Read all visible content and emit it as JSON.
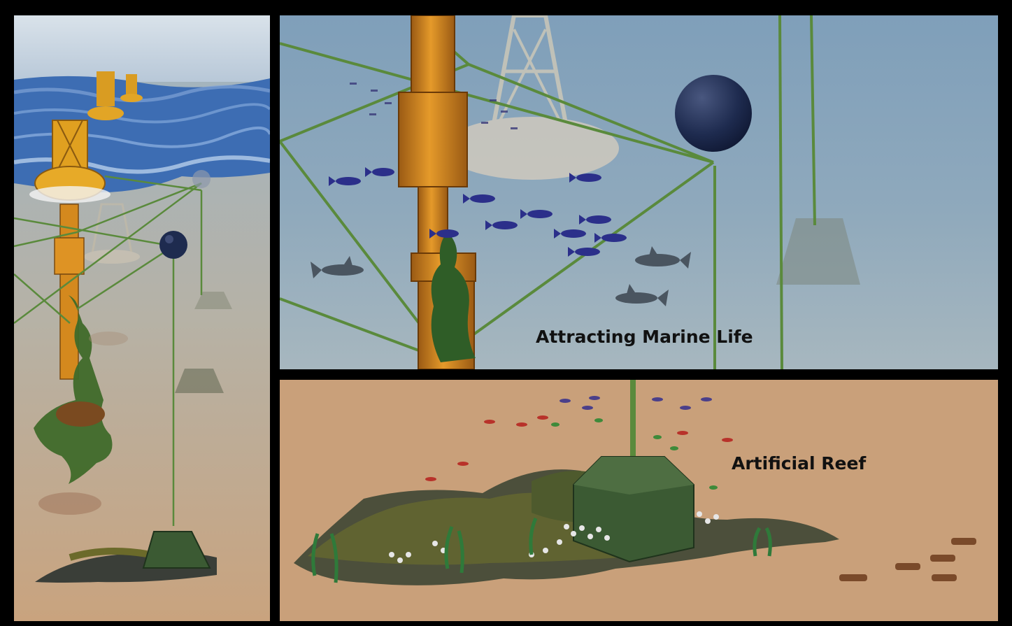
{
  "panels": {
    "left": {},
    "top": {
      "caption": "Attracting Marine Life"
    },
    "bottom": {
      "caption": "Artificial Reef"
    }
  },
  "colors": {
    "sky": "#c8d6e2",
    "ocean_surface": "#3f6fb4",
    "water": "#8fa7b9",
    "seafloor": "#c9a07a",
    "buoy": "#e0a020",
    "pole": "#d4891e",
    "mooring_line": "#5a8a3c",
    "float": "#1e2b4f",
    "anchor": "#3b5a33",
    "fish_blue": "#2b2f8a",
    "fish_red": "#b8322a",
    "shark": "#4a5560",
    "reef_rock": "#4a4e3a"
  }
}
